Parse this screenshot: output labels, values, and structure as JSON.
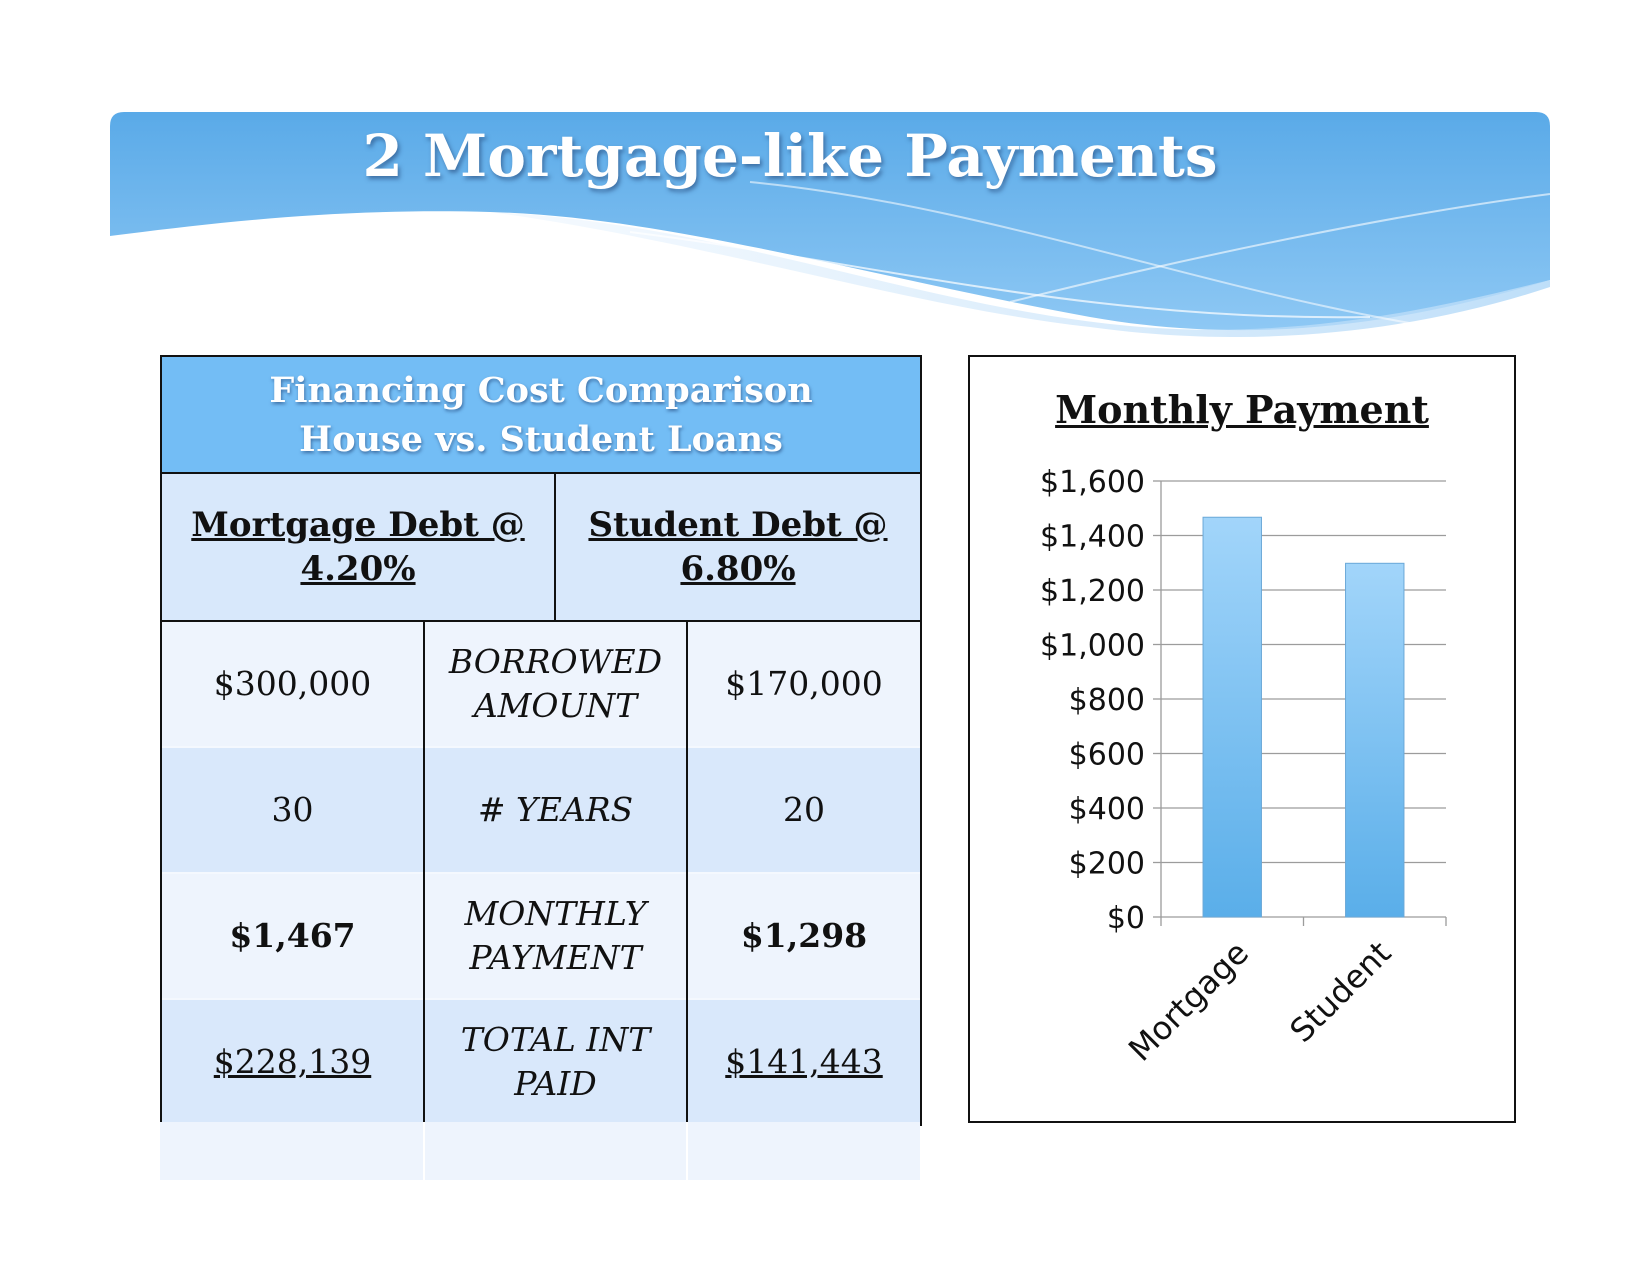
{
  "slide": {
    "title": "2 Mortgage-like Payments",
    "banner_color": "#5aaae8"
  },
  "table": {
    "title_line1": "Financing Cost Comparison",
    "title_line2": "House vs. Student Loans",
    "mortgage_head_line1": "Mortgage Debt @",
    "mortgage_head_line2": "4.20%",
    "student_head_line1": "Student Debt @",
    "student_head_line2": "6.80%",
    "rows": [
      {
        "left": "$300,000",
        "label_line1": "BORROWED",
        "label_line2": "AMOUNT",
        "right": "$170,000"
      },
      {
        "left": "30",
        "label_line1": "# YEARS",
        "label_line2": "",
        "right": "20"
      },
      {
        "left": "$1,467",
        "label_line1": "MONTHLY",
        "label_line2": "PAYMENT",
        "right": "$1,298"
      },
      {
        "left": "$228,139",
        "label_line1": "TOTAL INT",
        "label_line2": "PAID",
        "right": "$141,443"
      }
    ],
    "header_color": "#73bdf5"
  },
  "chart_data": {
    "type": "bar",
    "title": "Monthly Payment",
    "categories": [
      "Mortgage",
      "Student"
    ],
    "values": [
      1467,
      1298
    ],
    "ylim": [
      0,
      1600
    ],
    "yticks": [
      0,
      200,
      400,
      600,
      800,
      1000,
      1200,
      1400,
      1600
    ],
    "ytick_labels": [
      "$0",
      "$200",
      "$400",
      "$600",
      "$800",
      "$1,000",
      "$1,200",
      "$1,400",
      "$1,600"
    ],
    "grid": true,
    "bar_color": "#7cc0f2"
  }
}
